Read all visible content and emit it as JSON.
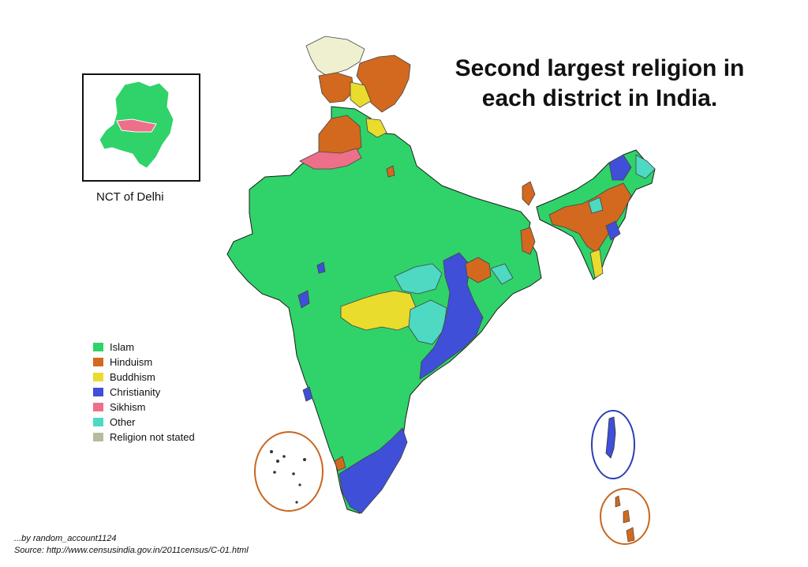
{
  "title": {
    "line1": "Second largest religion in",
    "line2": "each district in India."
  },
  "inset": {
    "label": "NCT of Delhi"
  },
  "legend": [
    {
      "label": "Islam",
      "color": "#2fd36a"
    },
    {
      "label": "Hinduism",
      "color": "#d2691e"
    },
    {
      "label": "Buddhism",
      "color": "#e9dc2c"
    },
    {
      "label": "Christianity",
      "color": "#3f4fd8"
    },
    {
      "label": "Sikhism",
      "color": "#ee6f8a"
    },
    {
      "label": "Other",
      "color": "#4ed9c3"
    },
    {
      "label": "Religion not stated",
      "color": "#b9b9a0"
    }
  ],
  "credit": {
    "author": "...by random_account1124",
    "source": "Source:  http://www.censusindia.gov.in/2011census/C-01.html"
  },
  "colors": {
    "islam": "#2fd36a",
    "hinduism": "#d2691e",
    "buddhism": "#e9dc2c",
    "christianity": "#3f4fd8",
    "sikhism": "#ee6f8a",
    "other": "#4ed9c3",
    "not_stated": "#b9b9a0",
    "unclaimed": "#eef0cf",
    "islands_ring_orange": "#c8661f",
    "islands_ring_blue": "#2c3fb0"
  }
}
